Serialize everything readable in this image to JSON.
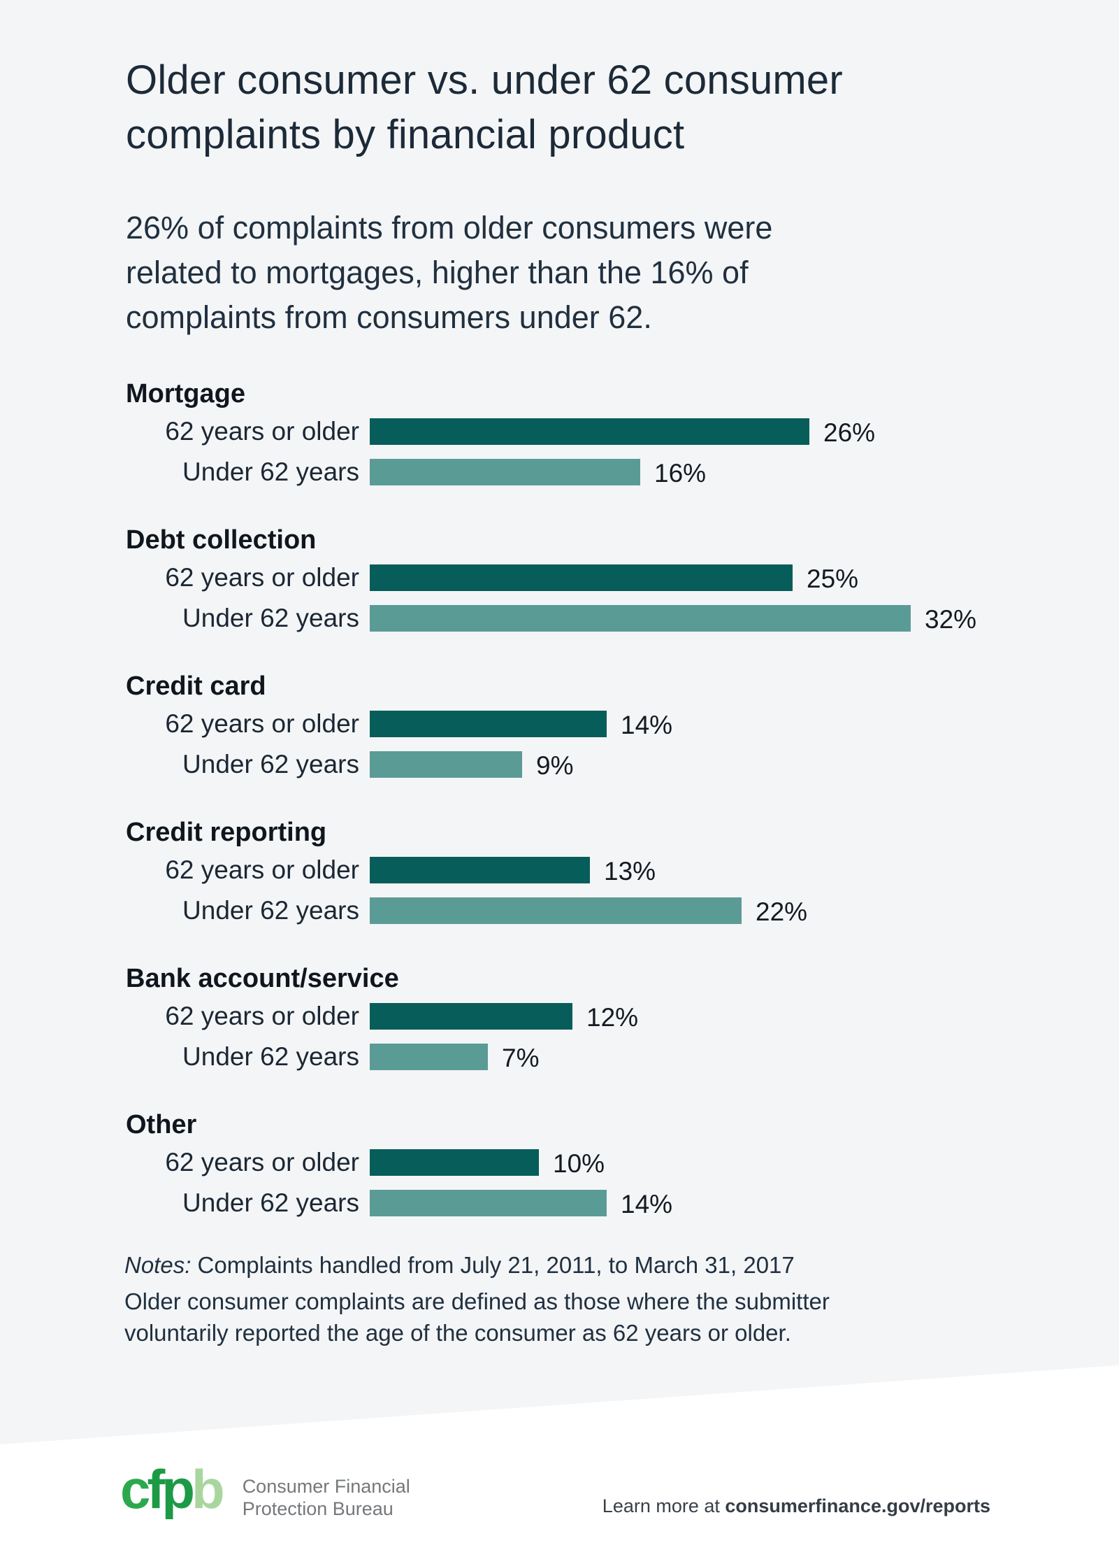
{
  "page": {
    "title_lines": [
      "Older consumer vs. under 62 consumer",
      "complaints by financial product"
    ],
    "subtitle_lines": [
      "26% of complaints from older consumers were",
      "related to mortgages, higher than the 16% of",
      "complaints from consumers under 62."
    ],
    "background_color": "#f4f5f7"
  },
  "chart_data": {
    "type": "bar",
    "orientation": "horizontal",
    "title": "Older consumer vs. under 62 consumer complaints by financial product",
    "subtitle": "26% of complaints from older consumers were related to mortgages, higher than the 16% of complaints from consumers under 62.",
    "categories": [
      "Mortgage",
      "Debt collection",
      "Credit card",
      "Credit reporting",
      "Bank account/service",
      "Other"
    ],
    "series": [
      {
        "name": "62 years or older",
        "color": "#075d59",
        "values": [
          26,
          25,
          14,
          13,
          12,
          10
        ]
      },
      {
        "name": "Under 62 years",
        "color": "#5b9b96",
        "values": [
          16,
          32,
          9,
          22,
          7,
          14
        ]
      }
    ],
    "value_suffix": "%",
    "xlim": [
      0,
      34
    ],
    "grid": false,
    "legend_position": "row-labels",
    "data_labels": true
  },
  "notes": {
    "label": "Notes:",
    "line1": "Complaints handled from July 21, 2011, to March 31, 2017",
    "body_lines": [
      "Older consumer complaints are defined as those where the submitter",
      "voluntarily reported the age of the consumer as 62 years or older."
    ]
  },
  "footer": {
    "logo_letters": [
      "c",
      "f",
      "p",
      "b"
    ],
    "brand_lines": [
      "Consumer Financial",
      "Protection Bureau"
    ],
    "learn_more_prefix": "Learn more at ",
    "learn_more_link": "consumerfinance.gov/reports"
  },
  "colors": {
    "dark_teal_bar": "#075d59",
    "light_teal_bar": "#5b9b96",
    "title_text": "#1c2a38",
    "logo_green_dark": "#1d9a45",
    "logo_green_mid": "#2ba94c",
    "logo_green_light": "#a9d69e",
    "footer_background": "#ffffff"
  }
}
